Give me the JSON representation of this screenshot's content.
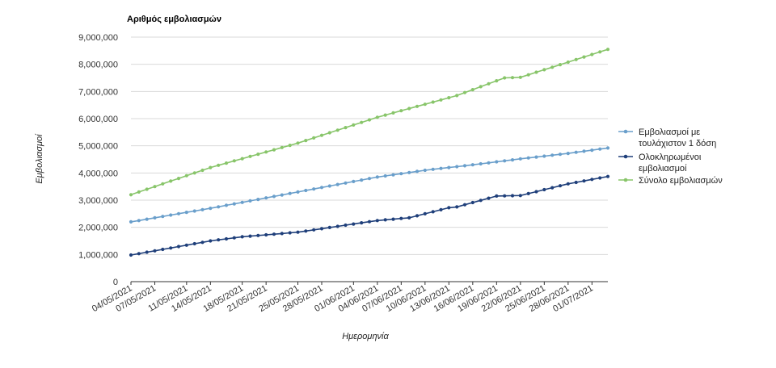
{
  "chart_data": {
    "type": "line",
    "title": "Αριθμός εμβολιασμών",
    "xlabel": "Ημερομηνία",
    "ylabel": "Εμβολιασμοί",
    "ylim": [
      0,
      9000000
    ],
    "yticks": [
      0,
      1000000,
      2000000,
      3000000,
      4000000,
      5000000,
      6000000,
      7000000,
      8000000,
      9000000
    ],
    "ytick_labels": [
      "0",
      "1,000,000",
      "2,000,000",
      "3,000,000",
      "4,000,000",
      "5,000,000",
      "6,000,000",
      "7,000,000",
      "8,000,000",
      "9,000,000"
    ],
    "grid": true,
    "legend_position": "right",
    "x_start": "04/05/2021",
    "x_end": "03/07/2021",
    "xtick_labels": [
      "04/05/2021",
      "07/05/2021",
      "11/05/2021",
      "14/05/2021",
      "18/05/2021",
      "21/05/2021",
      "25/05/2021",
      "28/05/2021",
      "01/06/2021",
      "04/06/2021",
      "07/06/2021",
      "10/06/2021",
      "13/06/2021",
      "16/06/2021",
      "19/06/2021",
      "22/06/2021",
      "25/06/2021",
      "28/06/2021",
      "01/07/2021"
    ],
    "series": [
      {
        "name": "Εμβολιασμοί με τουλάχιστον 1 δόση",
        "color": "#6a9fcb",
        "anchors": [
          [
            "04/05/2021",
            2200000
          ],
          [
            "14/05/2021",
            2700000
          ],
          [
            "25/05/2021",
            3300000
          ],
          [
            "04/06/2021",
            3850000
          ],
          [
            "10/06/2021",
            4100000
          ],
          [
            "16/06/2021",
            4300000
          ],
          [
            "22/06/2021",
            4520000
          ],
          [
            "28/06/2021",
            4720000
          ],
          [
            "03/07/2021",
            4920000
          ]
        ]
      },
      {
        "name": "Ολοκληρωμένοι εμβολιασμοί",
        "color": "#1f3f7a",
        "anchors": [
          [
            "04/05/2021",
            980000
          ],
          [
            "14/05/2021",
            1500000
          ],
          [
            "18/05/2021",
            1650000
          ],
          [
            "25/05/2021",
            1820000
          ],
          [
            "04/06/2021",
            2250000
          ],
          [
            "08/06/2021",
            2350000
          ],
          [
            "13/06/2021",
            2720000
          ],
          [
            "14/06/2021",
            2750000
          ],
          [
            "19/06/2021",
            3150000
          ],
          [
            "22/06/2021",
            3170000
          ],
          [
            "28/06/2021",
            3600000
          ],
          [
            "03/07/2021",
            3870000
          ]
        ]
      },
      {
        "name": "Σύνολο εμβολιασμών",
        "color": "#88c56a",
        "anchors": [
          [
            "04/05/2021",
            3200000
          ],
          [
            "14/05/2021",
            4200000
          ],
          [
            "25/05/2021",
            5100000
          ],
          [
            "04/06/2021",
            6050000
          ],
          [
            "14/06/2021",
            6850000
          ],
          [
            "20/06/2021",
            7500000
          ],
          [
            "22/06/2021",
            7520000
          ],
          [
            "28/06/2021",
            8080000
          ],
          [
            "03/07/2021",
            8550000
          ]
        ]
      }
    ]
  },
  "legend": {
    "items": [
      {
        "lines": [
          "Εμβολιασμοί με",
          "τουλάχιστον 1 δόση"
        ]
      },
      {
        "lines": [
          "Ολοκληρωμένοι",
          "εμβολιασμοί"
        ]
      },
      {
        "lines": [
          "Σύνολο εμβολιασμών"
        ]
      }
    ]
  }
}
